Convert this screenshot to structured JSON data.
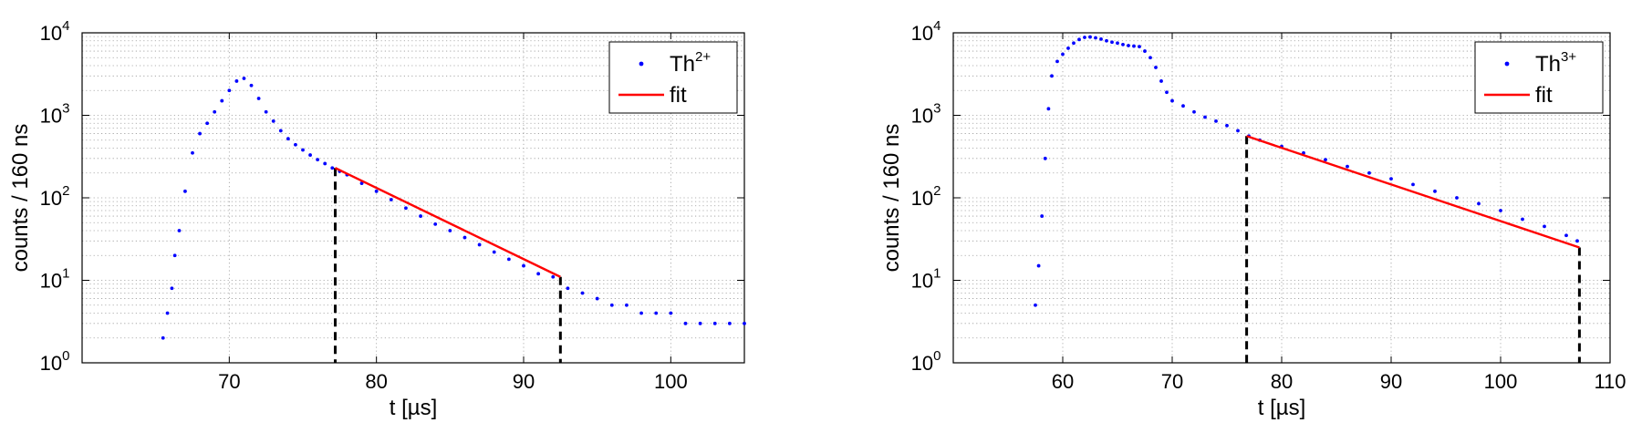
{
  "chart_data": [
    {
      "type": "scatter",
      "xlabel": "t [µs]",
      "ylabel": "counts / 160 ns",
      "xlim": [
        60,
        105
      ],
      "xticks": [
        70,
        80,
        90,
        100
      ],
      "yscale": "log",
      "ylim": [
        1,
        10000
      ],
      "yticks": [
        {
          "base": "10",
          "exp": "0"
        },
        {
          "base": "10",
          "exp": "1"
        },
        {
          "base": "10",
          "exp": "2"
        },
        {
          "base": "10",
          "exp": "3"
        },
        {
          "base": "10",
          "exp": "4"
        }
      ],
      "grid": true,
      "legend_position": "top-right",
      "legend": [
        {
          "label": "Th",
          "sup": "2+",
          "kind": "points",
          "color": "#0000ff"
        },
        {
          "label": "fit",
          "kind": "line",
          "color": "#ff0000"
        }
      ],
      "series": [
        {
          "name": "Th2+",
          "kind": "points",
          "color": "#0000ff",
          "x": [
            65.5,
            65.8,
            66.1,
            66.3,
            66.6,
            67.0,
            67.5,
            68.0,
            68.5,
            69.0,
            69.5,
            70.0,
            70.5,
            71.0,
            71.5,
            72.0,
            72.5,
            73.0,
            73.5,
            74.0,
            74.5,
            75.0,
            75.5,
            76.0,
            76.5,
            77.0,
            77.5,
            78.0,
            79.0,
            80.0,
            81.0,
            82.0,
            83.0,
            84.0,
            85.0,
            86.0,
            87.0,
            88.0,
            89.0,
            90.0,
            91.0,
            92.0,
            93.0,
            94.0,
            95.0,
            96.0,
            97.0,
            98.0,
            99.0,
            100.0,
            101.0,
            102.0,
            103.0,
            104.0,
            105.0
          ],
          "y": [
            2,
            4,
            8,
            20,
            40,
            120,
            350,
            600,
            800,
            1100,
            1500,
            2000,
            2600,
            2800,
            2300,
            1600,
            1100,
            850,
            650,
            520,
            440,
            380,
            330,
            290,
            260,
            230,
            210,
            190,
            150,
            120,
            95,
            75,
            60,
            48,
            40,
            33,
            27,
            22,
            18,
            15,
            12,
            11,
            8,
            7,
            6,
            5,
            5,
            4,
            4,
            4,
            3,
            3,
            3,
            3,
            3
          ]
        },
        {
          "name": "fit",
          "kind": "line",
          "color": "#ff0000",
          "x": [
            77.2,
            92.5
          ],
          "y": [
            230,
            11
          ]
        }
      ],
      "annotations": [
        {
          "kind": "vertical-dashed",
          "x": 77.2,
          "y_top": 230
        },
        {
          "kind": "vertical-dashed",
          "x": 92.5,
          "y_top": 11
        }
      ]
    },
    {
      "type": "scatter",
      "xlabel": "t [µs]",
      "ylabel": "counts / 160 ns",
      "xlim": [
        50,
        110
      ],
      "xticks": [
        60,
        70,
        80,
        90,
        100,
        110
      ],
      "yscale": "log",
      "ylim": [
        1,
        10000
      ],
      "yticks": [
        {
          "base": "10",
          "exp": "0"
        },
        {
          "base": "10",
          "exp": "1"
        },
        {
          "base": "10",
          "exp": "2"
        },
        {
          "base": "10",
          "exp": "3"
        },
        {
          "base": "10",
          "exp": "4"
        }
      ],
      "grid": true,
      "legend_position": "top-right",
      "legend": [
        {
          "label": "Th",
          "sup": "3+",
          "kind": "points",
          "color": "#0000ff"
        },
        {
          "label": "fit",
          "kind": "line",
          "color": "#ff0000"
        }
      ],
      "series": [
        {
          "name": "Th3+",
          "kind": "points",
          "color": "#0000ff",
          "x": [
            57.5,
            57.8,
            58.1,
            58.4,
            58.7,
            59.0,
            59.5,
            60.0,
            60.5,
            61.0,
            61.5,
            62.0,
            62.5,
            63.0,
            63.5,
            64.0,
            64.5,
            65.0,
            65.5,
            66.0,
            66.5,
            67.0,
            67.5,
            68.0,
            68.5,
            69.0,
            69.5,
            70.0,
            71.0,
            72.0,
            73.0,
            74.0,
            75.0,
            76.0,
            77.0,
            78.0,
            80.0,
            82.0,
            84.0,
            86.0,
            88.0,
            90.0,
            92.0,
            94.0,
            96.0,
            98.0,
            100.0,
            102.0,
            104.0,
            106.0,
            107.0
          ],
          "y": [
            5,
            15,
            60,
            300,
            1200,
            3000,
            4500,
            5500,
            6500,
            7500,
            8300,
            8800,
            8900,
            8700,
            8400,
            8000,
            7700,
            7500,
            7200,
            7000,
            6900,
            6800,
            6000,
            5000,
            3800,
            2600,
            1900,
            1500,
            1300,
            1100,
            950,
            850,
            750,
            650,
            560,
            500,
            420,
            350,
            290,
            240,
            200,
            170,
            145,
            120,
            100,
            85,
            70,
            55,
            45,
            35,
            30
          ]
        },
        {
          "name": "fit",
          "kind": "line",
          "color": "#ff0000",
          "x": [
            76.8,
            107.2
          ],
          "y": [
            560,
            25
          ]
        }
      ],
      "annotations": [
        {
          "kind": "vertical-dashed",
          "x": 76.8,
          "y_top": 560
        },
        {
          "kind": "vertical-dashed",
          "x": 107.2,
          "y_top": 25
        }
      ]
    }
  ]
}
